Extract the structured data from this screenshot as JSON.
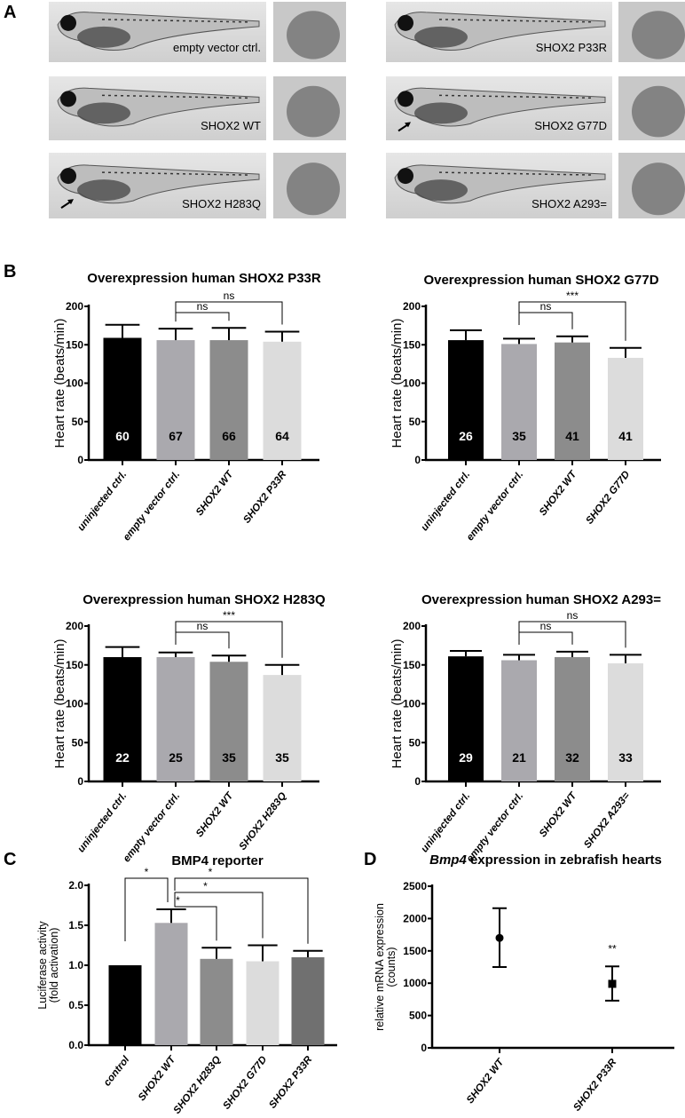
{
  "panel_letters": {
    "a": "A",
    "b": "B",
    "c": "C",
    "d": "D"
  },
  "panel_a": {
    "images": [
      {
        "caption": "empty vector ctrl.",
        "arrow": false
      },
      {
        "caption": "SHOX2 WT",
        "arrow": false
      },
      {
        "caption": "SHOX2 H283Q",
        "arrow": true
      },
      {
        "caption": "SHOX2 P33R",
        "arrow": false
      },
      {
        "caption": "SHOX2 G77D",
        "arrow": true
      },
      {
        "caption": "SHOX2 A293=",
        "arrow": false
      }
    ]
  },
  "chart_data": [
    {
      "type": "bar",
      "panel": "B",
      "title": "Overexpression human SHOX2 P33R",
      "ylabel": "Heart rate (beats/min)",
      "ylim": [
        0,
        200
      ],
      "yticks": [
        "0",
        "50",
        "100",
        "150",
        "200"
      ],
      "categories": [
        "uninjected ctrl.",
        "empty vector ctrl.",
        "SHOX2 WT",
        "SHOX2 P33R"
      ],
      "values": [
        159,
        156,
        156,
        154
      ],
      "errors": [
        17,
        15,
        16,
        13
      ],
      "n_labels": [
        "60",
        "67",
        "66",
        "64"
      ],
      "colors": [
        "#000000",
        "#aaa9ae",
        "#8c8c8c",
        "#dcdcdc"
      ],
      "annotations": [
        {
          "from": 1,
          "to": 2,
          "label": "ns",
          "level": 0
        },
        {
          "from": 1,
          "to": 3,
          "label": "ns",
          "level": 1
        }
      ]
    },
    {
      "type": "bar",
      "panel": "B",
      "title": "Overexpression human SHOX2 G77D",
      "ylabel": "Heart rate (beats/min)",
      "ylim": [
        0,
        200
      ],
      "yticks": [
        "0",
        "50",
        "100",
        "150",
        "200"
      ],
      "categories": [
        "uninjected ctrl.",
        "empty vector ctrl.",
        "SHOX2 WT",
        "SHOX2 G77D"
      ],
      "values": [
        156,
        151,
        153,
        133
      ],
      "errors": [
        13,
        7,
        8,
        13
      ],
      "n_labels": [
        "26",
        "35",
        "41",
        "41"
      ],
      "colors": [
        "#000000",
        "#aaa9ae",
        "#8c8c8c",
        "#dcdcdc"
      ],
      "annotations": [
        {
          "from": 1,
          "to": 2,
          "label": "ns",
          "level": 0
        },
        {
          "from": 1,
          "to": 3,
          "label": "***",
          "level": 1
        }
      ]
    },
    {
      "type": "bar",
      "panel": "B",
      "title": "Overexpression human SHOX2 H283Q",
      "ylabel": "Heart rate (beats/min)",
      "ylim": [
        0,
        200
      ],
      "yticks": [
        "0",
        "50",
        "100",
        "150",
        "200"
      ],
      "categories": [
        "uninjected ctrl.",
        "empty vector ctrl.",
        "SHOX2 WT",
        "SHOX2 H283Q"
      ],
      "values": [
        160,
        160,
        154,
        137
      ],
      "errors": [
        13,
        6,
        8,
        13
      ],
      "n_labels": [
        "22",
        "25",
        "35",
        "35"
      ],
      "colors": [
        "#000000",
        "#aaa9ae",
        "#8c8c8c",
        "#dcdcdc"
      ],
      "annotations": [
        {
          "from": 1,
          "to": 2,
          "label": "ns",
          "level": 0
        },
        {
          "from": 1,
          "to": 3,
          "label": "***",
          "level": 1
        }
      ]
    },
    {
      "type": "bar",
      "panel": "B",
      "title": "Overexpression human SHOX2 A293=",
      "ylabel": "Heart rate (beats/min)",
      "ylim": [
        0,
        200
      ],
      "yticks": [
        "0",
        "50",
        "100",
        "150",
        "200"
      ],
      "categories": [
        "uninjected ctrl.",
        "empty vector ctrl.",
        "SHOX2 WT",
        "SHOX2 A293="
      ],
      "values": [
        161,
        156,
        160,
        152
      ],
      "errors": [
        7,
        7,
        7,
        11
      ],
      "n_labels": [
        "29",
        "21",
        "32",
        "33"
      ],
      "colors": [
        "#000000",
        "#aaa9ae",
        "#8c8c8c",
        "#dcdcdc"
      ],
      "annotations": [
        {
          "from": 1,
          "to": 2,
          "label": "ns",
          "level": 0
        },
        {
          "from": 1,
          "to": 3,
          "label": "ns",
          "level": 1
        }
      ]
    },
    {
      "type": "bar",
      "panel": "C",
      "title": "BMP4 reporter",
      "ylabel": [
        "Luciferase activity",
        "(fold activation)"
      ],
      "ylim": [
        0,
        2.0
      ],
      "yticks": [
        "0.0",
        "0.5",
        "1.0",
        "1.5",
        "2.0"
      ],
      "categories": [
        "control",
        "SHOX2 WT",
        "SHOX2 H283Q",
        "SHOX2 G77D",
        "SHOX2 P33R"
      ],
      "values": [
        1.0,
        1.53,
        1.08,
        1.05,
        1.1
      ],
      "errors": [
        0,
        0.17,
        0.14,
        0.2,
        0.08
      ],
      "colors": [
        "#000000",
        "#aaa9ae",
        "#8c8c8c",
        "#dcdcdc",
        "#707070"
      ],
      "annotations": [
        {
          "from": 0,
          "to": 1,
          "label": "*",
          "level": 2
        },
        {
          "from": 1,
          "to": 2,
          "label": "*",
          "level": 0
        },
        {
          "from": 1,
          "to": 3,
          "label": "*",
          "level": 1
        },
        {
          "from": 1,
          "to": 4,
          "label": "*",
          "level": 2
        }
      ]
    },
    {
      "type": "scatter",
      "panel": "D",
      "title_italic": "Bmp4",
      "title_rest": " expression in zebrafish hearts",
      "ylabel": [
        "relative mRNA expression",
        "(counts)"
      ],
      "ylim": [
        0,
        2500
      ],
      "yticks": [
        "0",
        "500",
        "1000",
        "1500",
        "2000",
        "2500"
      ],
      "categories": [
        "SHOX2 WT",
        "SHOX2 P33R"
      ],
      "values": [
        1700,
        990
      ],
      "error_low": [
        1250,
        730
      ],
      "error_high": [
        2160,
        1260
      ],
      "markers": [
        "circle",
        "square"
      ],
      "point_labels": [
        "",
        "**"
      ]
    }
  ]
}
